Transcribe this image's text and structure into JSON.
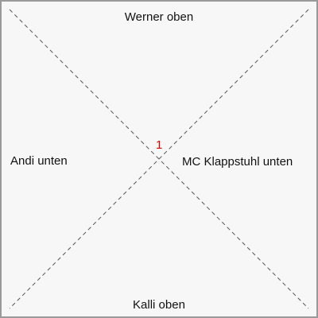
{
  "diagram": {
    "labels": {
      "top": "Werner oben",
      "bottom": "Kalli oben",
      "left": "Andi unten",
      "right": "MC Klappstuhl unten"
    },
    "center_marker": "1",
    "colors": {
      "background": "#f7f7f7",
      "border": "#9a9a9a",
      "diagonal_lines": "#555555",
      "label_text": "#111111",
      "center_marker": "#e00000"
    }
  }
}
